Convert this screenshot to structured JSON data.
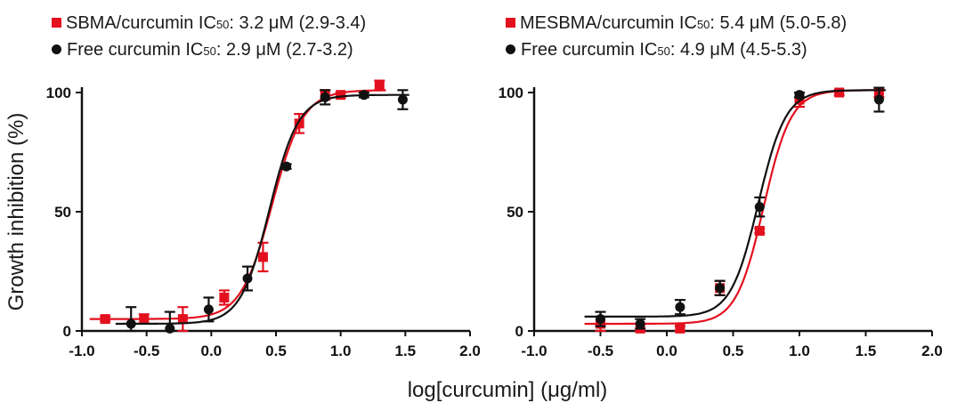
{
  "ylabel": "Growth inhibition (%)",
  "xlabel": "log[curcumin] (μg/ml)",
  "chart_data": [
    {
      "type": "scatter",
      "panel": "left",
      "xlim": [
        -1.0,
        2.0
      ],
      "ylim": [
        0,
        100
      ],
      "xticks": [
        "-1.0",
        "-0.5",
        "0.0",
        "0.5",
        "1.0",
        "1.5",
        "2.0"
      ],
      "yticks": [
        "0",
        "50",
        "100"
      ],
      "grid": false,
      "legend_position": "top",
      "series": [
        {
          "name": "SBMA/curcumin",
          "ic50_text": "3.2 μM (2.9-3.4)",
          "marker": "square",
          "color": "#e3101e",
          "x": [
            -0.82,
            -0.52,
            -0.22,
            0.1,
            0.4,
            0.68,
            0.88,
            1.0,
            1.3
          ],
          "y": [
            5,
            5,
            5,
            14,
            31,
            87,
            99,
            99,
            103
          ],
          "err": [
            1,
            2,
            5,
            3,
            6,
            4,
            2,
            1,
            2
          ],
          "fit": {
            "bottom": 5,
            "top": 101,
            "logec50": 0.47,
            "hill": 3.6
          }
        },
        {
          "name": "Free curcumin",
          "ic50_text": "2.9 μM (2.7-3.2)",
          "marker": "circle",
          "color": "#111111",
          "x": [
            -0.62,
            -0.32,
            -0.02,
            0.28,
            0.58,
            0.88,
            1.18,
            1.48
          ],
          "y": [
            3,
            1,
            9,
            22,
            69,
            98,
            99,
            97
          ],
          "err": [
            7,
            7,
            5,
            5,
            1,
            3,
            1,
            4
          ],
          "fit": {
            "bottom": 3,
            "top": 99,
            "logec50": 0.45,
            "hill": 3.9
          }
        }
      ]
    },
    {
      "type": "scatter",
      "panel": "right",
      "xlim": [
        -1.0,
        2.0
      ],
      "ylim": [
        0,
        100
      ],
      "xticks": [
        "-1.0",
        "-0.5",
        "0.0",
        "0.5",
        "1.0",
        "1.5",
        "2.0"
      ],
      "yticks": [
        "0",
        "50",
        "100"
      ],
      "grid": false,
      "legend_position": "top",
      "series": [
        {
          "name": "MESBMA/curcumin",
          "ic50_text": "5.4 μM (5.0-5.8)",
          "marker": "square",
          "color": "#e3101e",
          "x": [
            -0.5,
            -0.2,
            0.1,
            0.4,
            0.7,
            1.0,
            1.3,
            1.6
          ],
          "y": [
            3,
            1,
            1,
            18,
            42,
            97,
            100,
            100
          ],
          "err": [
            3,
            2,
            1,
            3,
            1,
            3,
            1,
            2
          ],
          "fit": {
            "bottom": 3,
            "top": 101,
            "logec50": 0.73,
            "hill": 4.2
          }
        },
        {
          "name": "Free curcumin",
          "ic50_text": "4.9 μM (4.5-5.3)",
          "marker": "circle",
          "color": "#111111",
          "x": [
            -0.5,
            -0.2,
            0.1,
            0.4,
            0.7,
            1.0,
            1.6
          ],
          "y": [
            5,
            3,
            10,
            18,
            52,
            99,
            97
          ],
          "err": [
            3,
            2,
            3,
            3,
            4,
            1,
            5
          ],
          "fit": {
            "bottom": 6,
            "top": 101,
            "logec50": 0.69,
            "hill": 4.2
          }
        }
      ]
    }
  ]
}
